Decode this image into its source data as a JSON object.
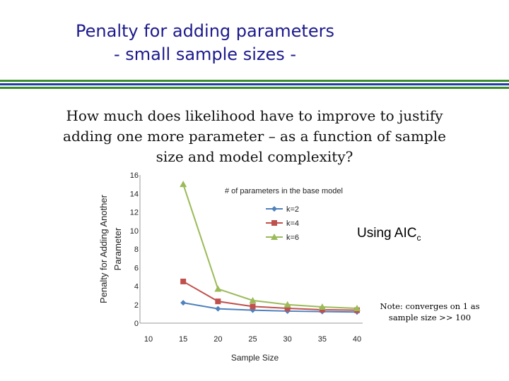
{
  "slide": {
    "title_line1": "Penalty for adding parameters",
    "title_line2": "- small sample sizes -",
    "question_lines": [
      "How much does likelihood have to improve to justify",
      "adding one more parameter – as a function of sample",
      "size and model complexity?"
    ],
    "method_label": "Using AIC",
    "method_subscript": "c",
    "note_lines": [
      "Note: converges on 1 as",
      "sample size >> 100"
    ],
    "accent_colors": {
      "title": "#1c1a8c",
      "rule_green": "#3a8e2c",
      "rule_blue": "#1f3ea8"
    }
  },
  "chart_data": {
    "type": "line",
    "xlabel": "Sample Size",
    "ylabel_lines": [
      "Penalty for Adding Another",
      "Parameter"
    ],
    "x_ticks": [
      10,
      15,
      20,
      25,
      30,
      35,
      40
    ],
    "y_ticks": [
      0,
      2,
      4,
      6,
      8,
      10,
      12,
      14,
      16
    ],
    "xlim": [
      10,
      40
    ],
    "ylim": [
      0,
      16
    ],
    "grid": false,
    "legend_title": "# of parameters in the base model",
    "legend_position": "top-right",
    "x": [
      15,
      20,
      25,
      30,
      35,
      40
    ],
    "series": [
      {
        "name": "k=2",
        "color": "#4f81bd",
        "marker": "diamond",
        "values": [
          2.2,
          1.55,
          1.4,
          1.3,
          1.25,
          1.2
        ]
      },
      {
        "name": "k=4",
        "color": "#c0504d",
        "marker": "square",
        "values": [
          4.5,
          2.35,
          1.8,
          1.6,
          1.45,
          1.4
        ]
      },
      {
        "name": "k=6",
        "color": "#9bbb59",
        "marker": "triangle",
        "values": [
          15.0,
          3.7,
          2.45,
          2.0,
          1.75,
          1.6
        ]
      }
    ]
  }
}
